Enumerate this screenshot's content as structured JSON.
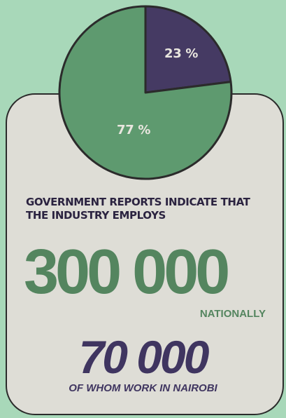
{
  "colors": {
    "background": "#a8d8b9",
    "card": "#deddd6",
    "green": "#5e9a6f",
    "purple": "#453a63",
    "outline": "#2b2b2b",
    "label_text": "#e9e6df"
  },
  "chart_data": {
    "type": "pie",
    "start_angle_deg": 0,
    "direction": "clockwise",
    "slices": [
      {
        "value": 23,
        "label": "23 %",
        "color": "#453a63"
      },
      {
        "value": 77,
        "label": "77 %",
        "color": "#5e9a6f"
      }
    ]
  },
  "content": {
    "headline": "GOVERNMENT REPORTS INDICATE THAT THE INDUSTRY EMPLOYS",
    "national_number": "300 000",
    "national_label": "NATIONALLY",
    "nairobi_number": "70 000",
    "nairobi_label": "OF WHOM WORK IN NAIROBI"
  }
}
